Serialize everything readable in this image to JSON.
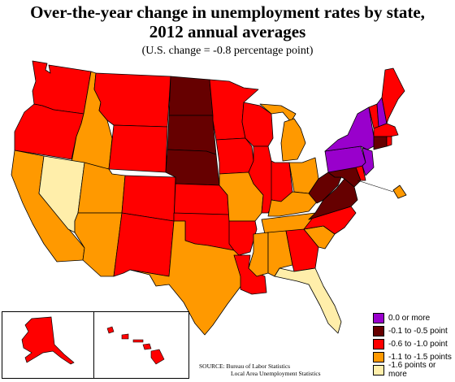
{
  "title_line1": "Over-the-year change in unemployment rates by state,",
  "title_line2": "2012 annual averages",
  "subtitle": "(U.S. change = -0.8 percentage point)",
  "colors": {
    "c0": "#9900cc",
    "c1": "#660000",
    "c2": "#ff0000",
    "c3": "#ff9900",
    "c4": "#ffeeaa",
    "border": "#000000"
  },
  "legend": [
    {
      "label": "0.0 or more",
      "color": "#9900cc"
    },
    {
      "label": "-0.1 to -0.5 point",
      "color": "#660000"
    },
    {
      "label": "-0.6 to -1.0 point",
      "color": "#ff0000"
    },
    {
      "label": "-1.1 to -1.5 points",
      "color": "#ff9900"
    },
    {
      "label": "-1.6 points or more",
      "color": "#ffeeaa"
    }
  ],
  "source_line1": "SOURCE:   Bureau of Labor Statistics",
  "source_line2": "Local Area Unemployment Statistics",
  "states": {
    "WA": "c2",
    "OR": "c2",
    "CA": "c3",
    "ID": "c3",
    "NV": "c4",
    "MT": "c2",
    "WY": "c2",
    "UT": "c3",
    "AZ": "c3",
    "CO": "c2",
    "NM": "c2",
    "ND": "c1",
    "SD": "c1",
    "NE": "c1",
    "KS": "c2",
    "OK": "c2",
    "TX": "c3",
    "MN": "c2",
    "IA": "c2",
    "MO": "c3",
    "AR": "c2",
    "LA": "c2",
    "WI": "c2",
    "IL": "c2",
    "MI": "c3",
    "IN": "c2",
    "OH": "c3",
    "KY": "c3",
    "TN": "c3",
    "MS": "c3",
    "AL": "c3",
    "GA": "c2",
    "FL": "c4",
    "SC": "c3",
    "NC": "c2",
    "VA": "c1",
    "WV": "c1",
    "MD": "c1",
    "DE": "c2",
    "DC": "c3",
    "PA": "c0",
    "NY": "c0",
    "NJ": "c0",
    "CT": "c1",
    "RI": "c2",
    "MA": "c2",
    "VT": "c2",
    "NH": "c0",
    "ME": "c2",
    "AK": "c2",
    "HI": "c2"
  }
}
